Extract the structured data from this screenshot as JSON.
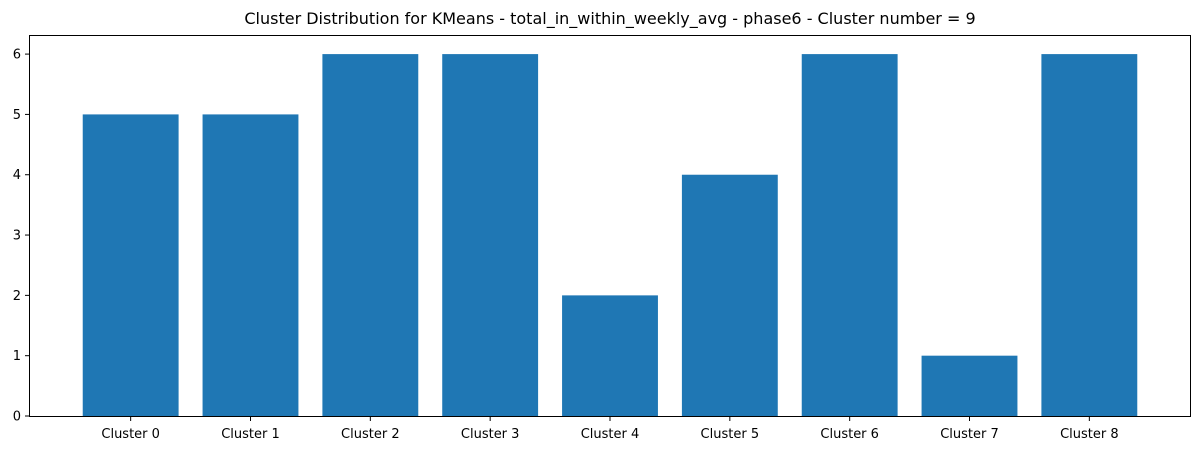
{
  "chart_data": {
    "type": "bar",
    "title": "Cluster Distribution for KMeans - total_in_within_weekly_avg - phase6 - Cluster number = 9",
    "xlabel": "",
    "ylabel": "",
    "categories": [
      "Cluster 0",
      "Cluster 1",
      "Cluster 2",
      "Cluster 3",
      "Cluster 4",
      "Cluster 5",
      "Cluster 6",
      "Cluster 7",
      "Cluster 8"
    ],
    "values": [
      5,
      5,
      6,
      6,
      2,
      4,
      6,
      1,
      6
    ],
    "ylim": [
      0,
      6.3
    ],
    "yticks": [
      0,
      1,
      2,
      3,
      4,
      5,
      6
    ],
    "bar_color": "#1f77b4",
    "grid": false,
    "legend": "none"
  }
}
